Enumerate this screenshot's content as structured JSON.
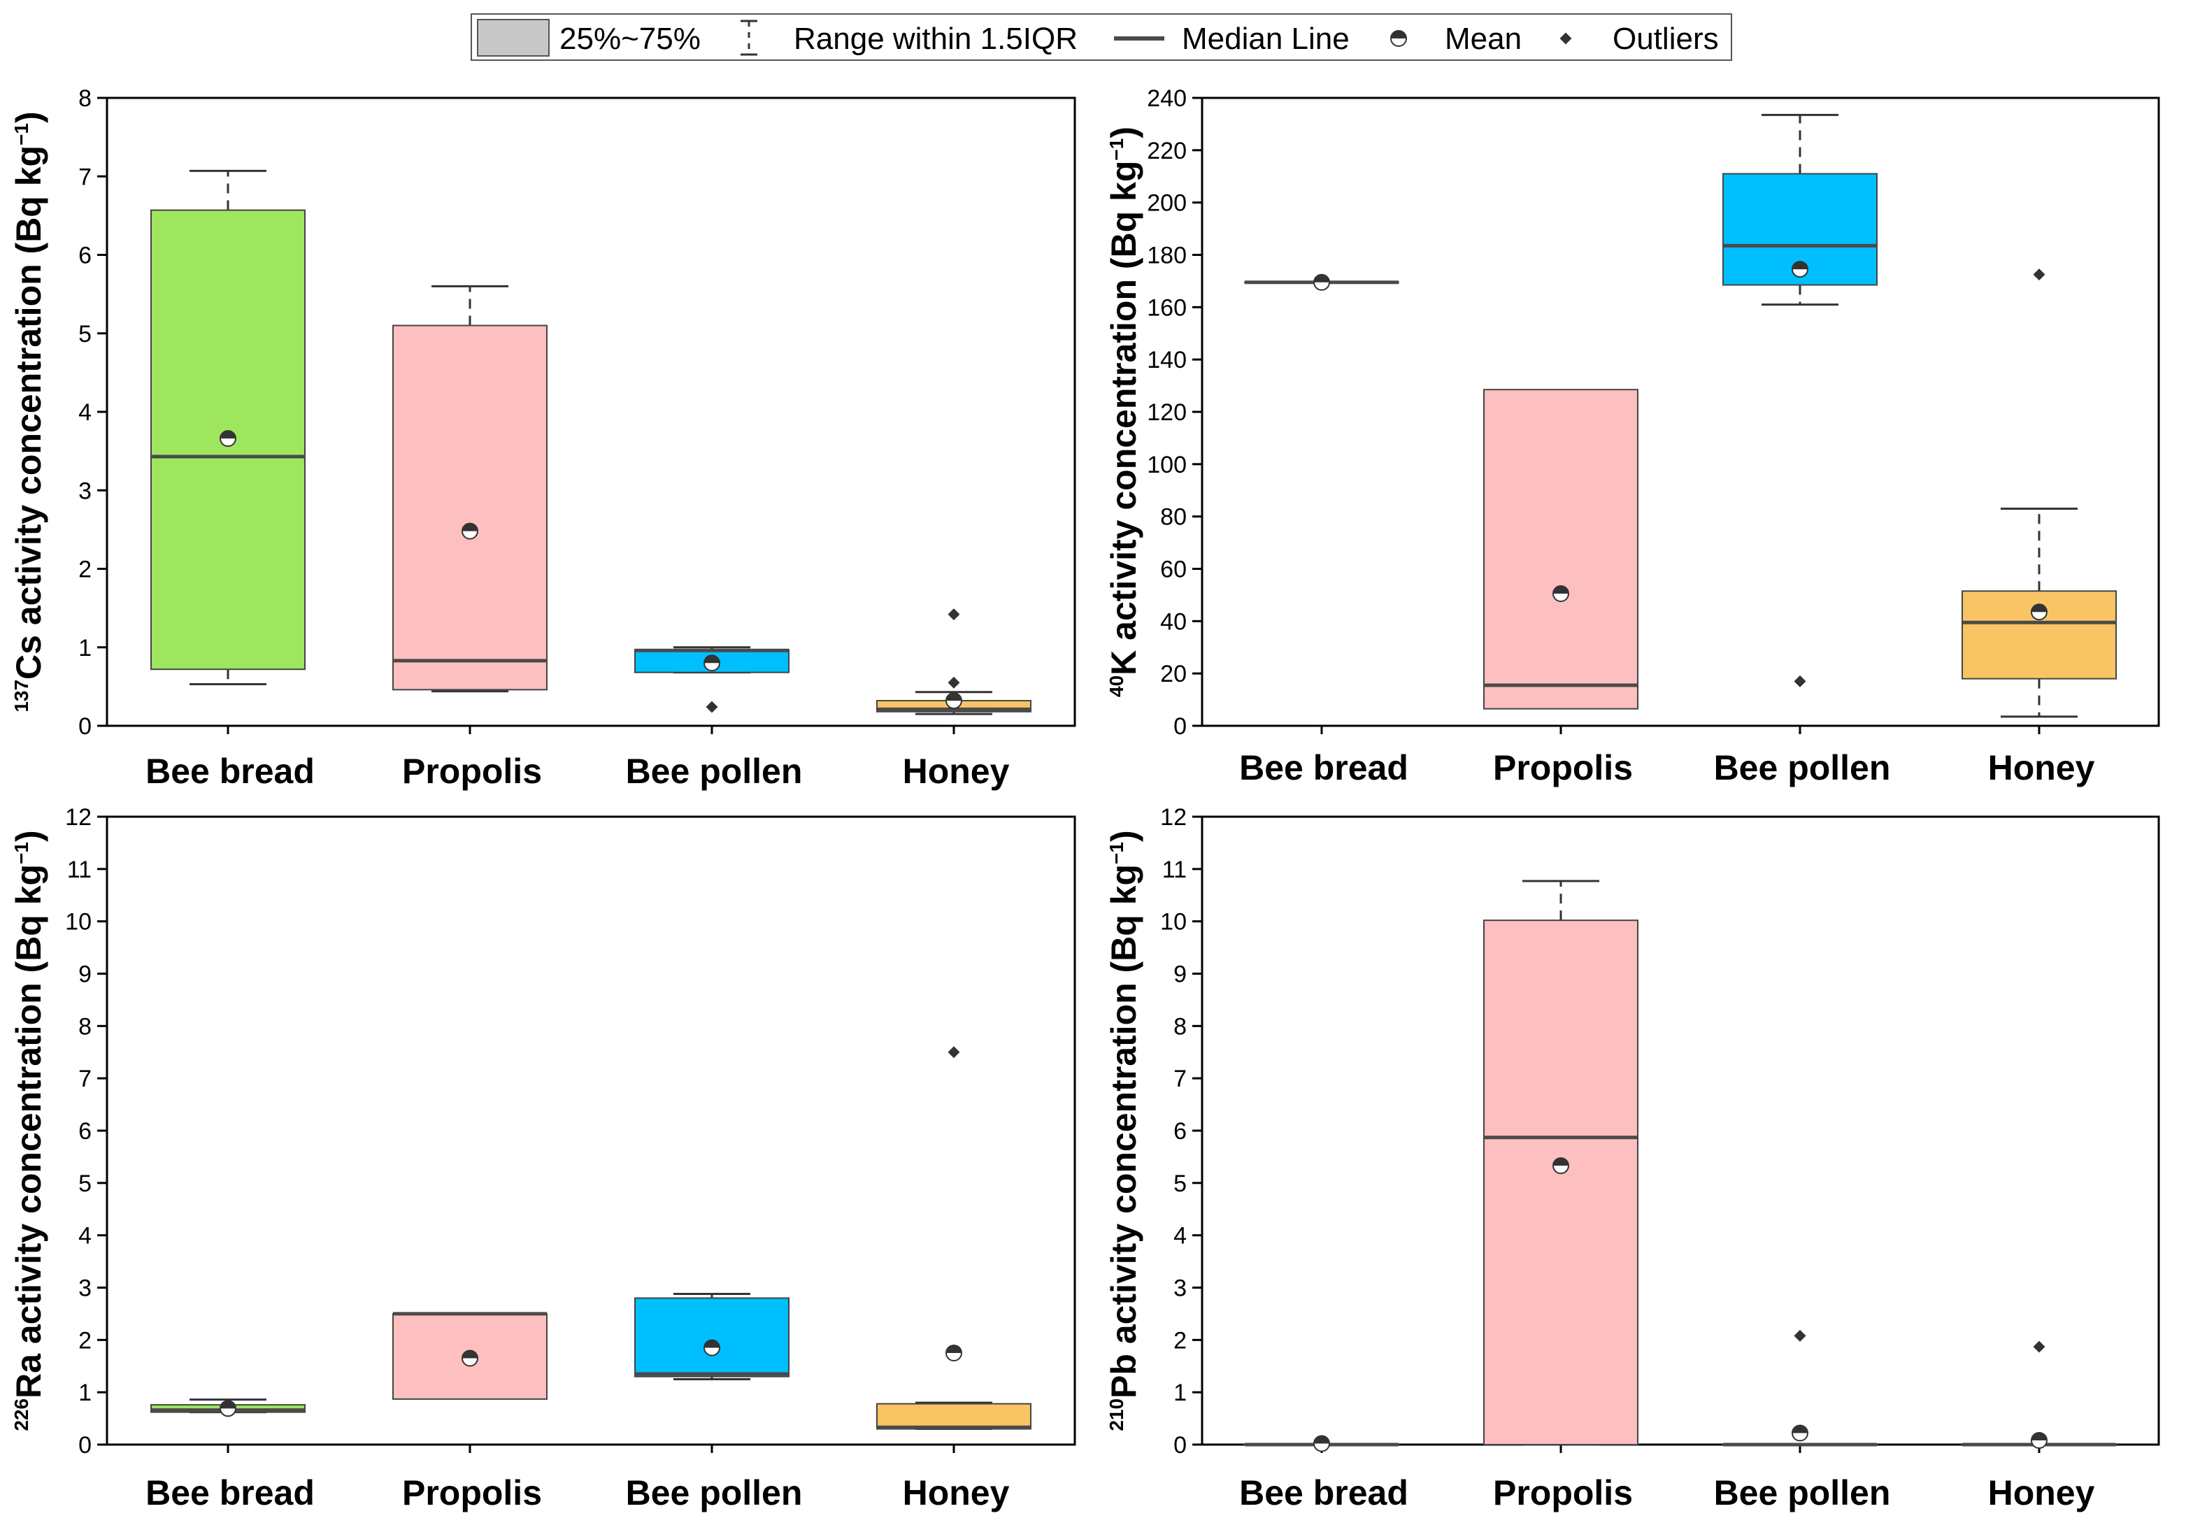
{
  "legend": {
    "box": "25%~75%",
    "whisker": "Range within 1.5IQR",
    "median": "Median Line",
    "mean": "Mean",
    "outliers": "Outliers"
  },
  "colors": {
    "Bee bread": "#9de65e",
    "Propolis": "#fdbfbf",
    "Bee pollen": "#00bfff",
    "Honey": "#f9c564",
    "median": "#4a4a4a",
    "marker": "#333333"
  },
  "chart_data": [
    {
      "type": "box",
      "id": "cs137",
      "ylabel": {
        "sup": "137",
        "main": "Cs activity concentration (Bq kg",
        "unit_sup": "−1",
        "close": ")"
      },
      "ylim": [
        0,
        8
      ],
      "yticks": [
        0,
        1,
        2,
        3,
        4,
        5,
        6,
        7,
        8
      ],
      "categories": [
        "Bee bread",
        "Propolis",
        "Bee pollen",
        "Honey"
      ],
      "boxes": [
        {
          "q1": 0.72,
          "q3": 6.57,
          "median": 3.43,
          "mean": 3.66,
          "whisker_low": 0.53,
          "whisker_high": 7.07,
          "outliers": []
        },
        {
          "q1": 0.46,
          "q3": 5.1,
          "median": 0.83,
          "mean": 2.48,
          "whisker_low": 0.44,
          "whisker_high": 5.6,
          "outliers": []
        },
        {
          "q1": 0.68,
          "q3": 0.97,
          "median": 0.96,
          "mean": 0.8,
          "whisker_low": 0.68,
          "whisker_high": 1.0,
          "outliers": [
            0.24
          ]
        },
        {
          "q1": 0.18,
          "q3": 0.32,
          "median": 0.21,
          "mean": 0.32,
          "whisker_low": 0.15,
          "whisker_high": 0.43,
          "outliers": [
            0.55,
            1.42
          ]
        }
      ]
    },
    {
      "type": "box",
      "id": "k40",
      "ylabel": {
        "sup": "40",
        "main": "K activity concentration (Bq kg",
        "unit_sup": "−1",
        "close": ")"
      },
      "ylim": [
        0,
        240
      ],
      "yticks": [
        0,
        20,
        40,
        60,
        80,
        100,
        120,
        140,
        160,
        180,
        200,
        220,
        240
      ],
      "categories": [
        "Bee bread",
        "Propolis",
        "Bee pollen",
        "Honey"
      ],
      "boxes": [
        {
          "q1": 169.5,
          "q3": 169.5,
          "median": 169.5,
          "mean": 169.5,
          "whisker_low": 169.5,
          "whisker_high": 169.5,
          "outliers": []
        },
        {
          "q1": 6.5,
          "q3": 128.5,
          "median": 15.5,
          "mean": 50.5,
          "whisker_low": 6.5,
          "whisker_high": 128.5,
          "outliers": []
        },
        {
          "q1": 168.5,
          "q3": 211,
          "median": 183.5,
          "mean": 174.5,
          "whisker_low": 161,
          "whisker_high": 233.5,
          "outliers": [
            17
          ]
        },
        {
          "q1": 18,
          "q3": 51.5,
          "median": 39.5,
          "mean": 43.5,
          "whisker_low": 3.5,
          "whisker_high": 83,
          "outliers": [
            172.5
          ]
        }
      ]
    },
    {
      "type": "box",
      "id": "ra226",
      "ylabel": {
        "sup": "226",
        "main": "Ra activity concentration (Bq kg",
        "unit_sup": "−1",
        "close": ")"
      },
      "ylim": [
        0,
        12
      ],
      "yticks": [
        0,
        1,
        2,
        3,
        4,
        5,
        6,
        7,
        8,
        9,
        10,
        11,
        12
      ],
      "categories": [
        "Bee bread",
        "Propolis",
        "Bee pollen",
        "Honey"
      ],
      "boxes": [
        {
          "q1": 0.62,
          "q3": 0.76,
          "median": 0.66,
          "mean": 0.69,
          "whisker_low": 0.62,
          "whisker_high": 0.86,
          "outliers": []
        },
        {
          "q1": 0.87,
          "q3": 2.5,
          "median": 2.5,
          "mean": 1.65,
          "whisker_low": 0.87,
          "whisker_high": 2.5,
          "outliers": []
        },
        {
          "q1": 1.3,
          "q3": 2.8,
          "median": 1.35,
          "mean": 1.85,
          "whisker_low": 1.25,
          "whisker_high": 2.88,
          "outliers": []
        },
        {
          "q1": 0.3,
          "q3": 0.78,
          "median": 0.33,
          "mean": 1.75,
          "whisker_low": 0.3,
          "whisker_high": 0.8,
          "outliers": [
            7.5
          ]
        }
      ]
    },
    {
      "type": "box",
      "id": "pb210",
      "ylabel": {
        "sup": "210",
        "main": "Pb activity concentration (Bq kg",
        "unit_sup": "−1",
        "close": ")"
      },
      "ylim": [
        0,
        12
      ],
      "yticks": [
        0,
        1,
        2,
        3,
        4,
        5,
        6,
        7,
        8,
        9,
        10,
        11,
        12
      ],
      "categories": [
        "Bee bread",
        "Propolis",
        "Bee pollen",
        "Honey"
      ],
      "boxes": [
        {
          "q1": 0,
          "q3": 0,
          "median": 0,
          "mean": 0.02,
          "whisker_low": 0,
          "whisker_high": 0,
          "outliers": []
        },
        {
          "q1": 0,
          "q3": 10.02,
          "median": 5.87,
          "mean": 5.33,
          "whisker_low": 0,
          "whisker_high": 10.77,
          "outliers": []
        },
        {
          "q1": 0,
          "q3": 0,
          "median": 0,
          "mean": 0.22,
          "whisker_low": 0,
          "whisker_high": 0,
          "outliers": [
            2.08
          ]
        },
        {
          "q1": 0,
          "q3": 0,
          "median": 0,
          "mean": 0.08,
          "whisker_low": 0,
          "whisker_high": 0,
          "outliers": [
            1.87
          ]
        }
      ]
    }
  ]
}
